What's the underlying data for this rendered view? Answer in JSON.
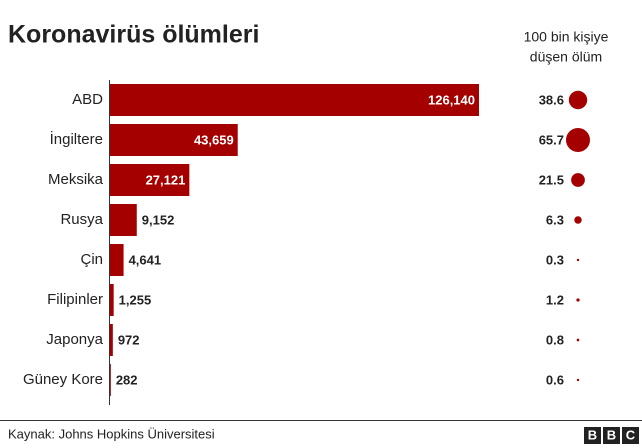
{
  "chart_data": {
    "type": "bar",
    "title": "Koronavirüs ölümleri",
    "categories": [
      "ABD",
      "İngiltere",
      "Meksika",
      "Rusya",
      "Çin",
      "Filipinler",
      "Japonya",
      "Güney Kore"
    ],
    "values": [
      126140,
      43659,
      27121,
      9152,
      4641,
      1255,
      972,
      282
    ],
    "value_labels": [
      "126,140",
      "43,659",
      "27,121",
      "9,152",
      "4,641",
      "1,255",
      "972",
      "282"
    ],
    "color": "#a50000",
    "rate_title": [
      "100 bin kişiye",
      "düşen ölüm"
    ],
    "rates": [
      38.6,
      65.7,
      21.5,
      6.3,
      0.3,
      1.2,
      0.8,
      0.6
    ],
    "source": "Kaynak: Johns Hopkins Üniversitesi",
    "logo": [
      "B",
      "B",
      "C"
    ]
  }
}
